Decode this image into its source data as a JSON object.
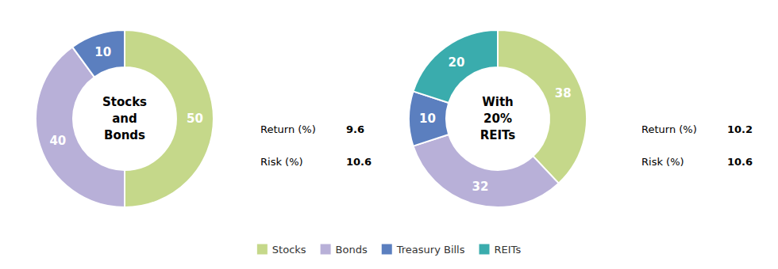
{
  "chart_data": [
    {
      "type": "pie",
      "title": "Stocks\nand\nBonds",
      "categories": [
        "Stocks",
        "Bonds",
        "Treasury Bills"
      ],
      "values": [
        50,
        40,
        10
      ],
      "colors": [
        "#c5d88a",
        "#b8b0d8",
        "#5b7fbf"
      ],
      "data_labels": true,
      "legend": "bottom",
      "annotations": [
        {
          "text": "Return (%)",
          "value": 9.6
        },
        {
          "text": "Risk (%)",
          "value": 10.6
        }
      ]
    },
    {
      "type": "pie",
      "title": "With\n20%\nREITs",
      "categories": [
        "Stocks",
        "Bonds",
        "Treasury Bills",
        "REITs"
      ],
      "values": [
        38,
        32,
        10,
        20
      ],
      "colors": [
        "#c5d88a",
        "#b8b0d8",
        "#5b7fbf",
        "#3aacad"
      ],
      "data_labels": true,
      "legend": "bottom",
      "annotations": [
        {
          "text": "Return (%)",
          "value": 10.2
        },
        {
          "text": "Risk (%)",
          "value": 10.6
        }
      ]
    }
  ]
}
